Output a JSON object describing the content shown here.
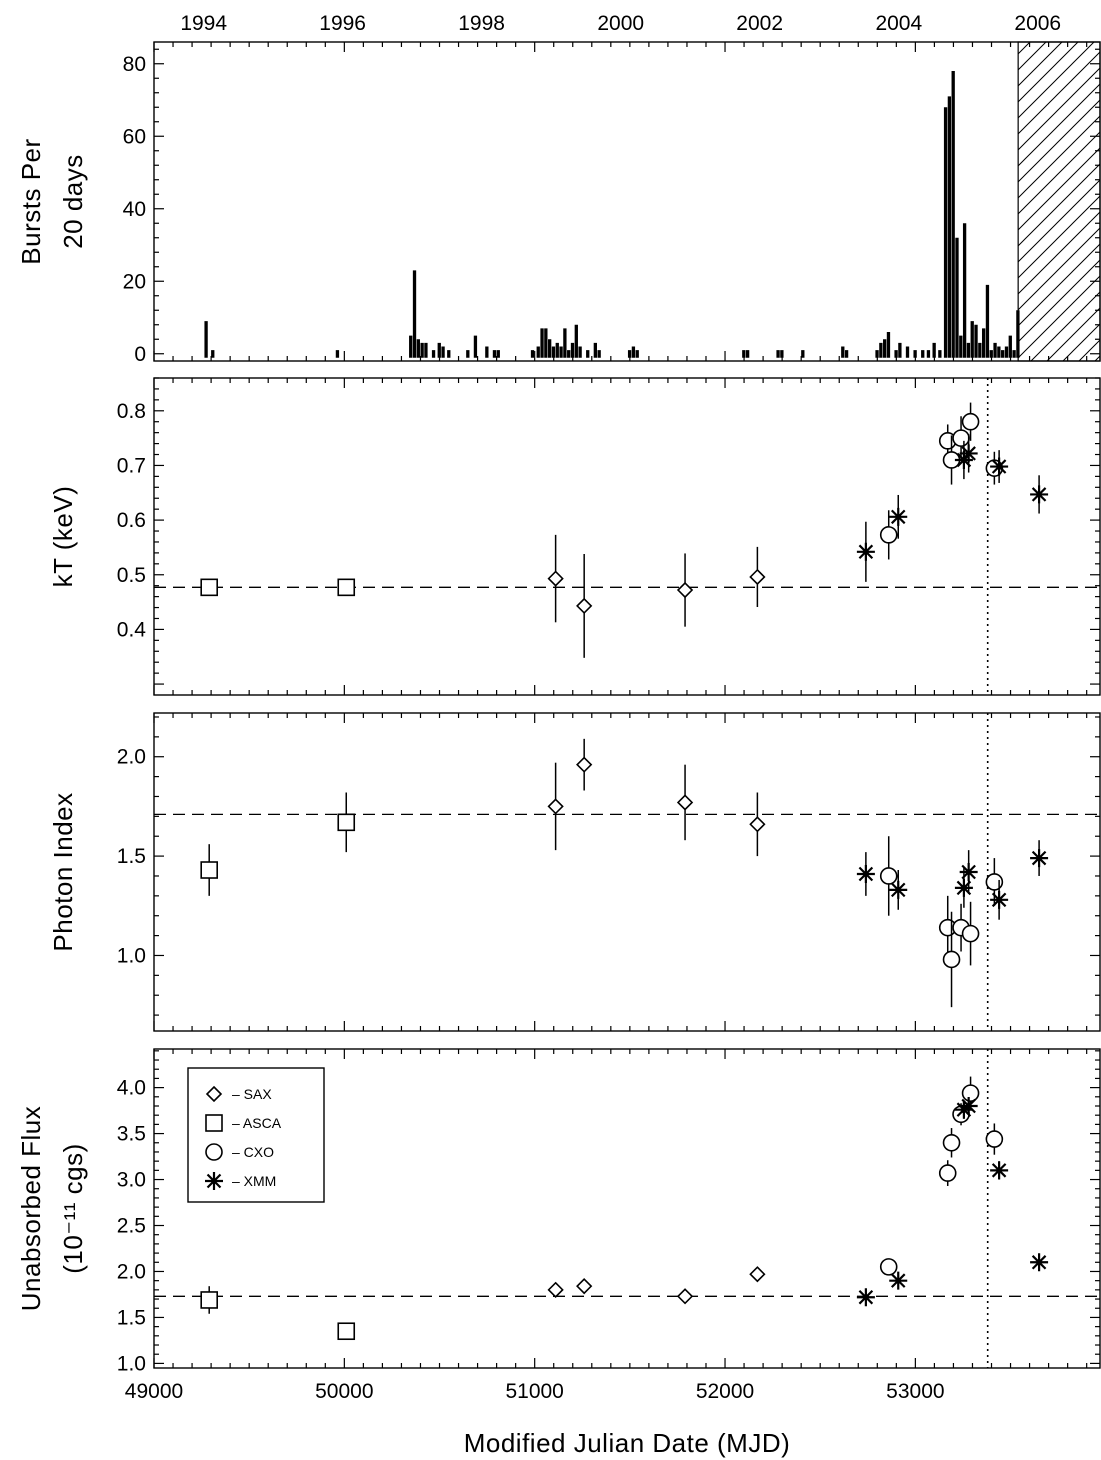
{
  "chart_data": [
    {
      "type": "bar",
      "panel": "burst-rate",
      "ylabel_lines": [
        "Bursts Per",
        "20 days"
      ],
      "ylim": [
        -2,
        86
      ],
      "yticks": [
        0,
        20,
        40,
        60,
        80
      ],
      "top_axis": {
        "labels": [
          "1994",
          "1996",
          "1998",
          "2000",
          "2002",
          "2004",
          "2006"
        ],
        "mjd": [
          49261,
          49991,
          50721,
          51452,
          52182,
          52913,
          53643
        ]
      },
      "hatched_region_mjd": [
        53540,
        53970
      ],
      "bins": [
        {
          "mjd": 49275,
          "count": 9
        },
        {
          "mjd": 49310,
          "count": 1
        },
        {
          "mjd": 49965,
          "count": 1
        },
        {
          "mjd": 50350,
          "count": 5
        },
        {
          "mjd": 50370,
          "count": 23
        },
        {
          "mjd": 50390,
          "count": 4
        },
        {
          "mjd": 50410,
          "count": 3
        },
        {
          "mjd": 50430,
          "count": 3
        },
        {
          "mjd": 50470,
          "count": 1
        },
        {
          "mjd": 50500,
          "count": 3
        },
        {
          "mjd": 50520,
          "count": 2
        },
        {
          "mjd": 50550,
          "count": 1
        },
        {
          "mjd": 50650,
          "count": 1
        },
        {
          "mjd": 50690,
          "count": 5
        },
        {
          "mjd": 50750,
          "count": 2
        },
        {
          "mjd": 50790,
          "count": 1
        },
        {
          "mjd": 50810,
          "count": 1
        },
        {
          "mjd": 50990,
          "count": 1
        },
        {
          "mjd": 51020,
          "count": 2
        },
        {
          "mjd": 51040,
          "count": 7
        },
        {
          "mjd": 51060,
          "count": 7
        },
        {
          "mjd": 51080,
          "count": 4
        },
        {
          "mjd": 51100,
          "count": 2
        },
        {
          "mjd": 51120,
          "count": 3
        },
        {
          "mjd": 51140,
          "count": 2
        },
        {
          "mjd": 51160,
          "count": 7
        },
        {
          "mjd": 51180,
          "count": 1
        },
        {
          "mjd": 51200,
          "count": 3
        },
        {
          "mjd": 51220,
          "count": 8
        },
        {
          "mjd": 51240,
          "count": 2
        },
        {
          "mjd": 51280,
          "count": 1
        },
        {
          "mjd": 51320,
          "count": 3
        },
        {
          "mjd": 51340,
          "count": 1
        },
        {
          "mjd": 51500,
          "count": 1
        },
        {
          "mjd": 51520,
          "count": 2
        },
        {
          "mjd": 51540,
          "count": 1
        },
        {
          "mjd": 52100,
          "count": 1
        },
        {
          "mjd": 52120,
          "count": 1
        },
        {
          "mjd": 52280,
          "count": 1
        },
        {
          "mjd": 52300,
          "count": 1
        },
        {
          "mjd": 52410,
          "count": 1
        },
        {
          "mjd": 52620,
          "count": 2
        },
        {
          "mjd": 52640,
          "count": 1
        },
        {
          "mjd": 52800,
          "count": 1
        },
        {
          "mjd": 52820,
          "count": 3
        },
        {
          "mjd": 52840,
          "count": 4
        },
        {
          "mjd": 52860,
          "count": 6
        },
        {
          "mjd": 52900,
          "count": 1
        },
        {
          "mjd": 52920,
          "count": 3
        },
        {
          "mjd": 52960,
          "count": 2
        },
        {
          "mjd": 53000,
          "count": 1
        },
        {
          "mjd": 53040,
          "count": 1
        },
        {
          "mjd": 53070,
          "count": 1
        },
        {
          "mjd": 53100,
          "count": 3
        },
        {
          "mjd": 53130,
          "count": 1
        },
        {
          "mjd": 53160,
          "count": 68
        },
        {
          "mjd": 53180,
          "count": 71
        },
        {
          "mjd": 53200,
          "count": 78
        },
        {
          "mjd": 53220,
          "count": 32
        },
        {
          "mjd": 53240,
          "count": 5
        },
        {
          "mjd": 53260,
          "count": 36
        },
        {
          "mjd": 53280,
          "count": 3
        },
        {
          "mjd": 53300,
          "count": 9
        },
        {
          "mjd": 53320,
          "count": 8
        },
        {
          "mjd": 53340,
          "count": 3
        },
        {
          "mjd": 53360,
          "count": 7
        },
        {
          "mjd": 53380,
          "count": 19
        },
        {
          "mjd": 53400,
          "count": 1
        },
        {
          "mjd": 53420,
          "count": 3
        },
        {
          "mjd": 53440,
          "count": 2
        },
        {
          "mjd": 53460,
          "count": 1
        },
        {
          "mjd": 53480,
          "count": 2
        },
        {
          "mjd": 53500,
          "count": 5
        },
        {
          "mjd": 53520,
          "count": 1
        },
        {
          "mjd": 53540,
          "count": 12
        }
      ]
    },
    {
      "type": "scatter",
      "panel": "kT",
      "ylabel_lines": [
        "kT (keV)"
      ],
      "ylim": [
        0.28,
        0.86
      ],
      "yticks": [
        0.4,
        0.5,
        0.6,
        0.7,
        0.8
      ],
      "yticklabels": [
        "0.4",
        "0.5",
        "0.6",
        "0.7",
        "0.8"
      ],
      "reference_level": 0.477,
      "series": [
        {
          "name": "SAX",
          "marker": "diamond",
          "points": [
            {
              "x": 51110,
              "y": 0.493,
              "err": 0.08
            },
            {
              "x": 51260,
              "y": 0.443,
              "err": 0.095
            },
            {
              "x": 51790,
              "y": 0.472,
              "err": 0.067
            },
            {
              "x": 52170,
              "y": 0.496,
              "err": 0.055
            }
          ]
        },
        {
          "name": "ASCA",
          "marker": "square",
          "points": [
            {
              "x": 49290,
              "y": 0.477,
              "err": 0.0
            },
            {
              "x": 50010,
              "y": 0.477,
              "err": 0.0
            }
          ]
        },
        {
          "name": "CXO",
          "marker": "circle",
          "points": [
            {
              "x": 52860,
              "y": 0.573,
              "err": 0.045
            },
            {
              "x": 53170,
              "y": 0.745,
              "err": 0.03
            },
            {
              "x": 53190,
              "y": 0.71,
              "err": 0.045
            },
            {
              "x": 53240,
              "y": 0.75,
              "err": 0.04
            },
            {
              "x": 53290,
              "y": 0.78,
              "err": 0.035
            },
            {
              "x": 53415,
              "y": 0.695,
              "err": 0.03
            }
          ]
        },
        {
          "name": "XMM",
          "marker": "asterisk",
          "points": [
            {
              "x": 52740,
              "y": 0.542,
              "err": 0.055
            },
            {
              "x": 52910,
              "y": 0.606,
              "err": 0.04
            },
            {
              "x": 53255,
              "y": 0.71,
              "err": 0.035
            },
            {
              "x": 53280,
              "y": 0.722,
              "err": 0.035
            },
            {
              "x": 53440,
              "y": 0.698,
              "err": 0.03
            },
            {
              "x": 53650,
              "y": 0.647,
              "err": 0.035
            }
          ]
        }
      ]
    },
    {
      "type": "scatter",
      "panel": "photon-index",
      "ylabel_lines": [
        "Photon Index"
      ],
      "ylim": [
        0.62,
        2.22
      ],
      "yticks": [
        1.0,
        1.5,
        2.0
      ],
      "yticklabels": [
        "1.0",
        "1.5",
        "2.0"
      ],
      "reference_level": 1.71,
      "series": [
        {
          "name": "SAX",
          "marker": "diamond",
          "points": [
            {
              "x": 51110,
              "y": 1.75,
              "err": 0.22
            },
            {
              "x": 51260,
              "y": 1.96,
              "err": 0.13
            },
            {
              "x": 51790,
              "y": 1.77,
              "err": 0.19
            },
            {
              "x": 52170,
              "y": 1.66,
              "err": 0.16
            }
          ]
        },
        {
          "name": "ASCA",
          "marker": "square",
          "points": [
            {
              "x": 49290,
              "y": 1.43,
              "err": 0.13
            },
            {
              "x": 50010,
              "y": 1.67,
              "err": 0.15
            }
          ]
        },
        {
          "name": "CXO",
          "marker": "circle",
          "points": [
            {
              "x": 52860,
              "y": 1.4,
              "err": 0.2
            },
            {
              "x": 53170,
              "y": 1.14,
              "err": 0.16
            },
            {
              "x": 53190,
              "y": 0.98,
              "err": 0.24
            },
            {
              "x": 53240,
              "y": 1.14,
              "err": 0.12
            },
            {
              "x": 53290,
              "y": 1.11,
              "err": 0.16
            },
            {
              "x": 53415,
              "y": 1.37,
              "err": 0.12
            }
          ]
        },
        {
          "name": "XMM",
          "marker": "asterisk",
          "points": [
            {
              "x": 52740,
              "y": 1.41,
              "err": 0.11
            },
            {
              "x": 52910,
              "y": 1.33,
              "err": 0.1
            },
            {
              "x": 53255,
              "y": 1.34,
              "err": 0.1
            },
            {
              "x": 53280,
              "y": 1.42,
              "err": 0.11
            },
            {
              "x": 53440,
              "y": 1.28,
              "err": 0.1
            },
            {
              "x": 53650,
              "y": 1.49,
              "err": 0.09
            }
          ]
        }
      ]
    },
    {
      "type": "scatter",
      "panel": "flux",
      "ylabel_lines": [
        "Unabsorbed Flux",
        "(10⁻¹¹ cgs)"
      ],
      "xlabel": "Modified Julian Date (MJD)",
      "xlim": [
        49000,
        53970
      ],
      "xticks": [
        49000,
        50000,
        51000,
        52000,
        53000
      ],
      "ylim": [
        0.95,
        4.42
      ],
      "yticks": [
        1.0,
        1.5,
        2.0,
        2.5,
        3.0,
        3.5,
        4.0
      ],
      "yticklabels": [
        "1.0",
        "1.5",
        "2.0",
        "2.5",
        "3.0",
        "3.5",
        "4.0"
      ],
      "reference_level": 1.73,
      "series": [
        {
          "name": "SAX",
          "marker": "diamond",
          "points": [
            {
              "x": 51110,
              "y": 1.8,
              "err": 0.0
            },
            {
              "x": 51260,
              "y": 1.84,
              "err": 0.0
            },
            {
              "x": 51790,
              "y": 1.73,
              "err": 0.0
            },
            {
              "x": 52170,
              "y": 1.97,
              "err": 0.0
            }
          ]
        },
        {
          "name": "ASCA",
          "marker": "square",
          "points": [
            {
              "x": 49290,
              "y": 1.69,
              "err": 0.15
            },
            {
              "x": 50010,
              "y": 1.35,
              "err": 0.08
            }
          ]
        },
        {
          "name": "CXO",
          "marker": "circle",
          "points": [
            {
              "x": 52860,
              "y": 2.05,
              "err": 0.07
            },
            {
              "x": 53170,
              "y": 3.07,
              "err": 0.14
            },
            {
              "x": 53190,
              "y": 3.4,
              "err": 0.16
            },
            {
              "x": 53240,
              "y": 3.71,
              "err": 0.12
            },
            {
              "x": 53290,
              "y": 3.94,
              "err": 0.18
            },
            {
              "x": 53415,
              "y": 3.44,
              "err": 0.17
            }
          ]
        },
        {
          "name": "XMM",
          "marker": "asterisk",
          "points": [
            {
              "x": 52740,
              "y": 1.72,
              "err": 0.04
            },
            {
              "x": 52910,
              "y": 1.9,
              "err": 0.05
            },
            {
              "x": 53255,
              "y": 3.76,
              "err": 0.1
            },
            {
              "x": 53280,
              "y": 3.8,
              "err": 0.08
            },
            {
              "x": 53440,
              "y": 3.1,
              "err": 0.1
            },
            {
              "x": 53650,
              "y": 2.1,
              "err": 0.06
            }
          ]
        }
      ]
    }
  ],
  "dotted_line_mjd": 53380,
  "legend": {
    "entries": [
      {
        "marker": "diamond",
        "label": "– SAX"
      },
      {
        "marker": "square",
        "label": "– ASCA"
      },
      {
        "marker": "circle",
        "label": "– CXO"
      },
      {
        "marker": "asterisk",
        "label": "– XMM"
      }
    ]
  }
}
